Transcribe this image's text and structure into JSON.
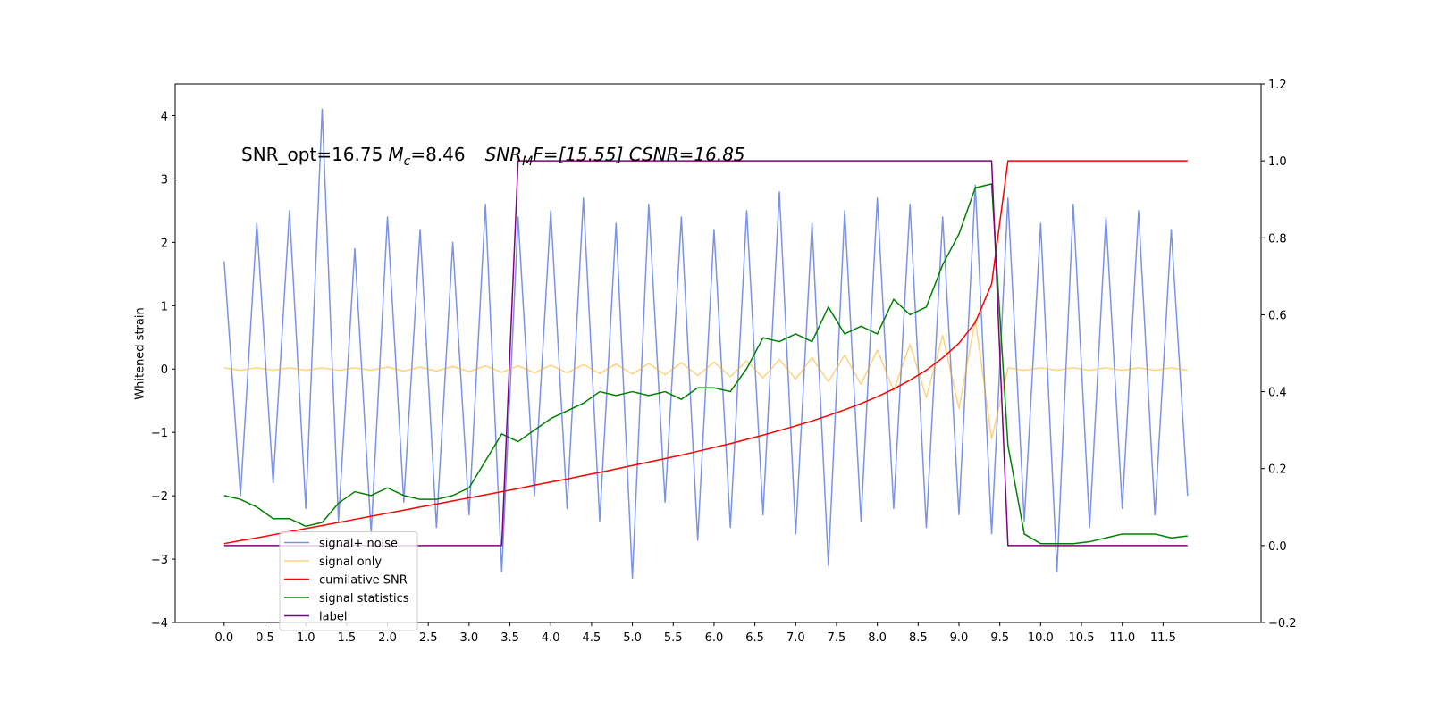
{
  "chart_data": {
    "type": "line",
    "annotation": [
      "SNR_opt=16.75",
      "M",
      "c",
      "=8.46",
      "SNR",
      "M",
      "F=[15.55] CSNR=16.85"
    ],
    "ylabel": "Whitened strain",
    "x": [
      0,
      0.2,
      0.4,
      0.6,
      0.8,
      1,
      1.2,
      1.4,
      1.6,
      1.8,
      2,
      2.2,
      2.4,
      2.6,
      2.8,
      3,
      3.2,
      3.4,
      3.6,
      3.8,
      4,
      4.2,
      4.4,
      4.6,
      4.8,
      5,
      5.2,
      5.4,
      5.6,
      5.8,
      6,
      6.2,
      6.4,
      6.6,
      6.8,
      7,
      7.2,
      7.4,
      7.6,
      7.8,
      8,
      8.2,
      8.4,
      8.6,
      8.8,
      9,
      9.2,
      9.4,
      9.6,
      9.8,
      10,
      10.2,
      10.4,
      10.6,
      10.8,
      11,
      11.2,
      11.4,
      11.6,
      11.8
    ],
    "xlim": [
      -0.6,
      12.7
    ],
    "ylim": [
      -4,
      4.5
    ],
    "y2lim": [
      -0.2,
      1.2
    ],
    "xticks": [
      {
        "value": 0,
        "label": "0.0"
      },
      {
        "value": 0.5,
        "label": "0.5"
      },
      {
        "value": 1,
        "label": "1.0"
      },
      {
        "value": 1.5,
        "label": "1.5"
      },
      {
        "value": 2,
        "label": "2.0"
      },
      {
        "value": 2.5,
        "label": "2.5"
      },
      {
        "value": 3,
        "label": "3.0"
      },
      {
        "value": 3.5,
        "label": "3.5"
      },
      {
        "value": 4,
        "label": "4.0"
      },
      {
        "value": 4.5,
        "label": "4.5"
      },
      {
        "value": 5,
        "label": "5.0"
      },
      {
        "value": 5.5,
        "label": "5.5"
      },
      {
        "value": 6,
        "label": "6.0"
      },
      {
        "value": 6.5,
        "label": "6.5"
      },
      {
        "value": 7,
        "label": "7.0"
      },
      {
        "value": 7.5,
        "label": "7.5"
      },
      {
        "value": 8,
        "label": "8.0"
      },
      {
        "value": 8.5,
        "label": "8.5"
      },
      {
        "value": 9,
        "label": "9.0"
      },
      {
        "value": 9.5,
        "label": "9.5"
      },
      {
        "value": 10,
        "label": "10.0"
      },
      {
        "value": 10.5,
        "label": "10.5"
      },
      {
        "value": 11,
        "label": "11.0"
      },
      {
        "value": 11.5,
        "label": "11.5"
      }
    ],
    "yticks": [
      {
        "value": -4,
        "label": "−4"
      },
      {
        "value": -3,
        "label": "−3"
      },
      {
        "value": -2,
        "label": "−2"
      },
      {
        "value": -1,
        "label": "−1"
      },
      0,
      1,
      2,
      3,
      4
    ],
    "y2ticks": [
      {
        "value": -0.2,
        "label": "−0.2"
      },
      {
        "value": 0,
        "label": "0.0"
      },
      {
        "value": 0.2,
        "label": "0.2"
      },
      {
        "value": 0.4,
        "label": "0.4"
      },
      {
        "value": 0.6,
        "label": "0.6"
      },
      {
        "value": 0.8,
        "label": "0.8"
      },
      {
        "value": 1,
        "label": "1.0"
      },
      {
        "value": 1.2,
        "label": "1.2"
      }
    ],
    "legend": "lower left",
    "series": [
      {
        "name": "signal+ noise",
        "color": "#5a78e0",
        "values": [
          1.7,
          -2.0,
          2.3,
          -1.8,
          2.5,
          -2.2,
          4.1,
          -2.4,
          1.9,
          -2.6,
          2.4,
          -2.1,
          2.2,
          -2.5,
          2.0,
          -2.3,
          2.6,
          -3.2,
          2.4,
          -2.0,
          2.5,
          -2.2,
          2.7,
          -2.4,
          2.3,
          -3.3,
          2.6,
          -2.1,
          2.4,
          -2.7,
          2.2,
          -2.5,
          2.5,
          -2.3,
          2.8,
          -2.6,
          2.3,
          -3.1,
          2.5,
          -2.4,
          2.7,
          -2.2,
          2.6,
          -2.5,
          2.4,
          -2.3,
          2.9,
          -2.6,
          2.7,
          -2.4,
          2.3,
          -3.2,
          2.6,
          -2.5,
          2.4,
          -2.2,
          2.5,
          -2.3,
          2.2,
          -2.0
        ]
      },
      {
        "name": "signal only",
        "color": "#ffa500",
        "values": [
          0.02,
          -0.02,
          0.02,
          -0.02,
          0.02,
          -0.02,
          0.02,
          -0.02,
          0.02,
          -0.02,
          0.03,
          -0.03,
          0.03,
          -0.03,
          0.04,
          -0.04,
          0.05,
          -0.05,
          0.05,
          -0.06,
          0.06,
          -0.06,
          0.07,
          -0.07,
          0.08,
          -0.08,
          0.09,
          -0.09,
          0.1,
          -0.1,
          0.11,
          -0.12,
          0.13,
          -0.14,
          0.15,
          -0.16,
          0.18,
          -0.2,
          0.22,
          -0.24,
          0.3,
          -0.34,
          0.39,
          -0.45,
          0.53,
          -0.62,
          0.78,
          -1.1,
          0.02,
          -0.02,
          0.02,
          -0.02,
          0.02,
          -0.02,
          0.02,
          -0.02,
          0.02,
          -0.02,
          0.02,
          -0.02
        ]
      },
      {
        "name": "cumilative SNR",
        "color": "#ff0000",
        "axis": "y2",
        "values": [
          0.005,
          0.013,
          0.02,
          0.028,
          0.036,
          0.044,
          0.052,
          0.06,
          0.068,
          0.076,
          0.084,
          0.092,
          0.1,
          0.108,
          0.116,
          0.124,
          0.132,
          0.14,
          0.148,
          0.157,
          0.165,
          0.173,
          0.182,
          0.19,
          0.199,
          0.208,
          0.217,
          0.226,
          0.235,
          0.245,
          0.255,
          0.265,
          0.276,
          0.287,
          0.299,
          0.311,
          0.324,
          0.338,
          0.353,
          0.369,
          0.387,
          0.407,
          0.43,
          0.456,
          0.488,
          0.526,
          0.58,
          0.68,
          1,
          1,
          1,
          1,
          1,
          1,
          1,
          1,
          1,
          1,
          1,
          1
        ]
      },
      {
        "name": "signal statistics",
        "color": "#008000",
        "axis": "y2",
        "values": [
          0.13,
          0.12,
          0.1,
          0.07,
          0.07,
          0.05,
          0.06,
          0.11,
          0.14,
          0.13,
          0.15,
          0.13,
          0.12,
          0.12,
          0.13,
          0.15,
          0.22,
          0.29,
          0.27,
          0.3,
          0.33,
          0.35,
          0.37,
          0.4,
          0.39,
          0.4,
          0.39,
          0.4,
          0.38,
          0.41,
          0.41,
          0.4,
          0.46,
          0.54,
          0.53,
          0.55,
          0.53,
          0.62,
          0.55,
          0.57,
          0.55,
          0.64,
          0.6,
          0.62,
          0.73,
          0.81,
          0.93,
          0.94,
          0.26,
          0.03,
          0.005,
          0.005,
          0.005,
          0.01,
          0.02,
          0.03,
          0.03,
          0.03,
          0.02,
          0.025
        ]
      },
      {
        "name": "label",
        "color": "#800080",
        "axis": "y2",
        "values": [
          0,
          0,
          0,
          0,
          0,
          0,
          0,
          0,
          0,
          0,
          0,
          0,
          0,
          0,
          0,
          0,
          0,
          0,
          1,
          1,
          1,
          1,
          1,
          1,
          1,
          1,
          1,
          1,
          1,
          1,
          1,
          1,
          1,
          1,
          1,
          1,
          1,
          1,
          1,
          1,
          1,
          1,
          1,
          1,
          1,
          1,
          1,
          1,
          0,
          0,
          0,
          0,
          0,
          0,
          0,
          0,
          0,
          0,
          0,
          0
        ]
      }
    ]
  }
}
